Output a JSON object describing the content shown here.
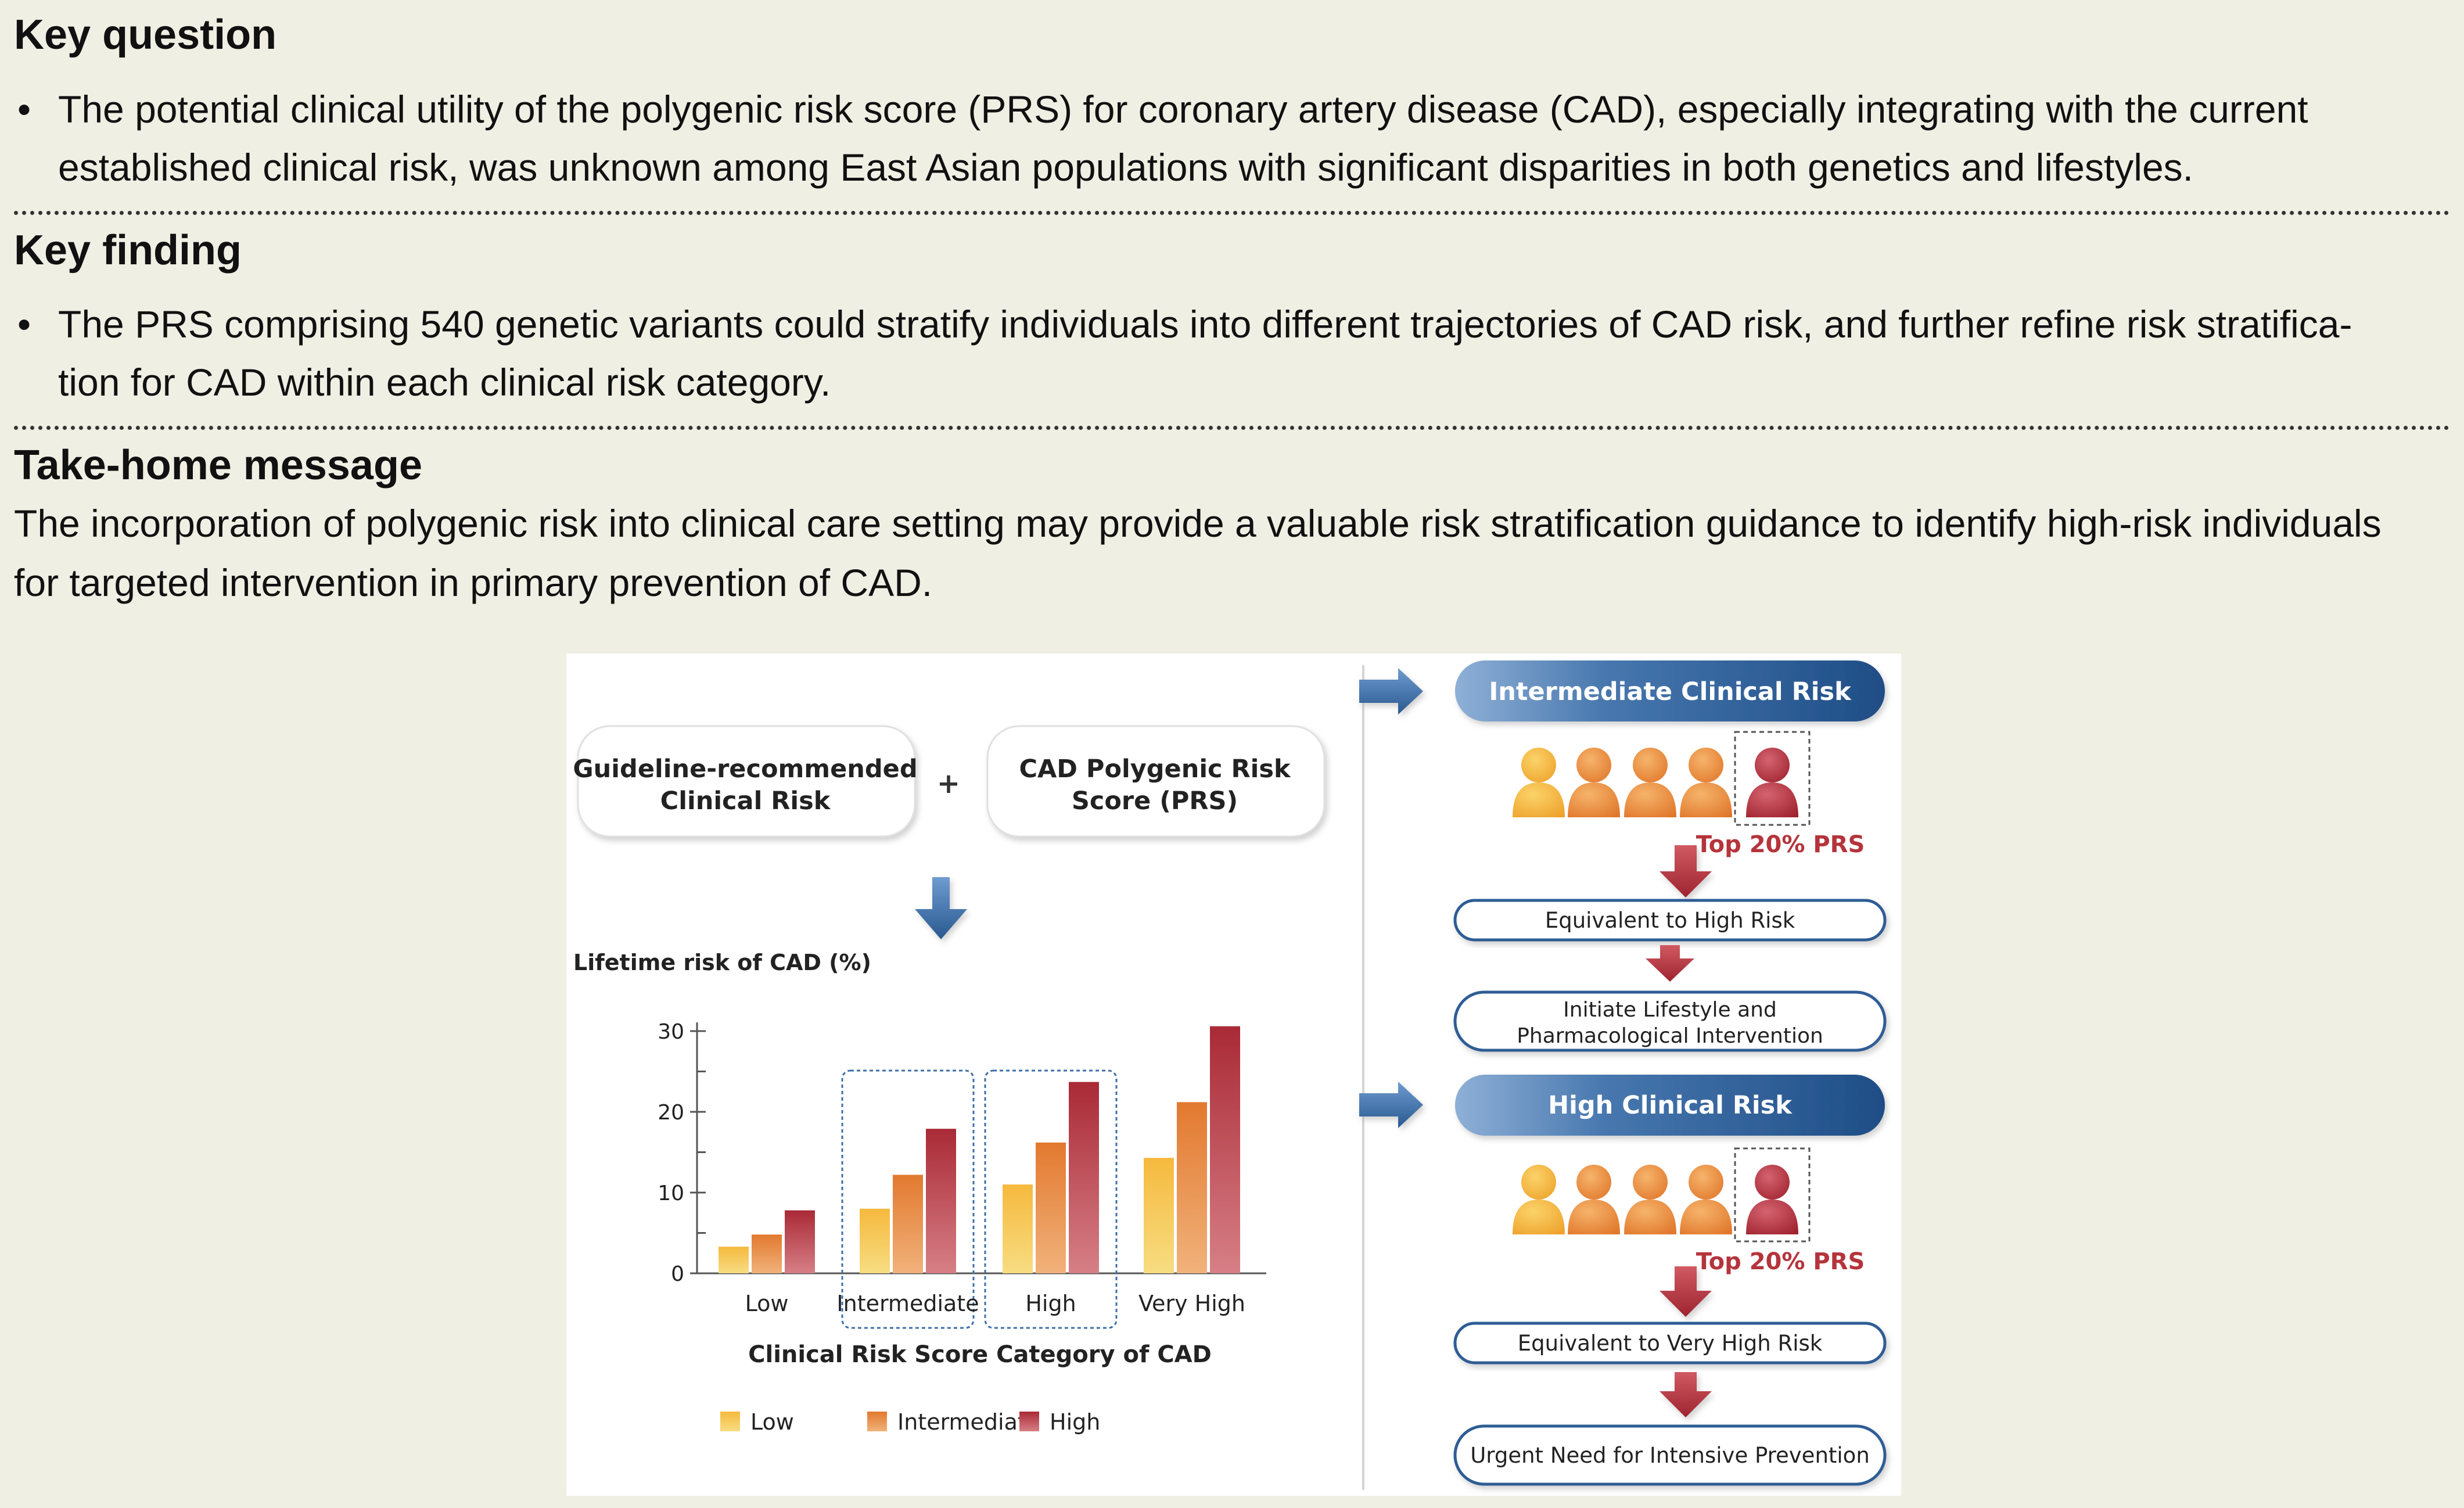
{
  "key_question": {
    "title": "Key question",
    "bullet": "•",
    "line1": "The potential clinical utility of the polygenic risk score (PRS) for coronary artery disease (CAD), especially integrating with the current",
    "line2": "established clinical risk, was unknown among East Asian populations with significant disparities in both genetics and lifestyles."
  },
  "key_finding": {
    "title": "Key finding",
    "bullet": "•",
    "line1": "The PRS comprising 540 genetic variants could stratify individuals into different trajectories of CAD risk, and further refine risk stratifica-",
    "line2": "tion for CAD within each clinical risk category."
  },
  "take_home": {
    "title": "Take-home message",
    "line1": "The incorporation of polygenic risk into clinical care setting may provide a valuable risk stratification guidance to identify high-risk individuals",
    "line2": "for targeted intervention in primary prevention of CAD."
  },
  "figure": {
    "input_box_1": [
      "Guideline-recommended",
      "Clinical Risk"
    ],
    "plus_sign": "+",
    "input_box_2": [
      "CAD Polygenic Risk",
      "Score (PRS)"
    ],
    "intermediate_panel": {
      "header": "Intermediate Clinical Risk",
      "top_label": "Top 20% PRS",
      "step1": "Equivalent to High Risk",
      "step2": [
        "Initiate Lifestyle and",
        "Pharmacological Intervention"
      ]
    },
    "high_panel": {
      "header": "High Clinical Risk",
      "top_label": "Top 20% PRS",
      "step1": "Equivalent to Very High Risk",
      "step2": "Urgent Need for Intensive Prevention"
    }
  },
  "chart_data": {
    "type": "bar",
    "title": "",
    "ylabel": "Lifetime risk of CAD (%)",
    "xlabel": "Clinical Risk Score Category of CAD",
    "categories": [
      "Low",
      "Intermediate",
      "High",
      "Very High"
    ],
    "series": [
      {
        "name": "Low",
        "values": [
          3.3,
          8.0,
          11.0,
          14.3
        ],
        "color": "#f5c242"
      },
      {
        "name": "Intermediate",
        "values": [
          4.8,
          12.2,
          16.2,
          21.2
        ],
        "color": "#e58a3b"
      },
      {
        "name": "High",
        "values": [
          7.8,
          17.9,
          23.7,
          30.6
        ],
        "color": "#b5343c"
      }
    ],
    "ylim": [
      0,
      30
    ],
    "yticks": [
      0,
      10,
      20,
      30
    ],
    "highlighted_categories": [
      "Intermediate",
      "High"
    ],
    "legend_position": "bottom",
    "grid": false
  },
  "colors": {
    "page_background": "#f0efe4",
    "panel_header_blue": "#2f5d95",
    "arrow_red": "#b5343c",
    "arrow_blue": "#3d6fa8",
    "label_red": "#b5343c"
  }
}
